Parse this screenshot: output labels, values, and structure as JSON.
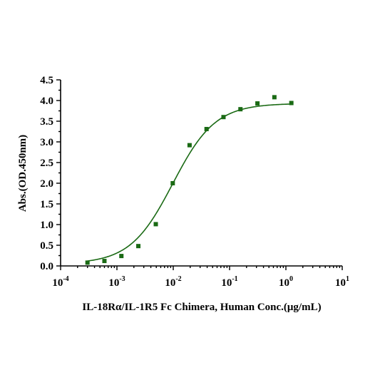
{
  "chart_data": {
    "type": "scatter",
    "title": "",
    "xlabel": "IL-18Rα/IL-1R5 Fc Chimera, Human Conc.(μg/mL)",
    "ylabel": "Abs.(OD.450nm)",
    "xscale": "log",
    "xlim": [
      0.0001,
      10
    ],
    "ylim": [
      0,
      4.5
    ],
    "xticks": [
      {
        "value": 0.0001,
        "base": "10",
        "exp": "-4"
      },
      {
        "value": 0.001,
        "base": "10",
        "exp": "-3"
      },
      {
        "value": 0.01,
        "base": "10",
        "exp": "-2"
      },
      {
        "value": 0.1,
        "base": "10",
        "exp": "-1"
      },
      {
        "value": 1,
        "base": "10",
        "exp": "0"
      },
      {
        "value": 10,
        "base": "10",
        "exp": "1"
      }
    ],
    "yticks": [
      "0.0",
      "0.5",
      "1.0",
      "1.5",
      "2.0",
      "2.5",
      "3.0",
      "3.5",
      "4.0",
      "4.5"
    ],
    "grid": false,
    "legend": "none",
    "color": "#1a6a14",
    "series": [
      {
        "x": [
          0.0003,
          0.0006,
          0.0012,
          0.0024,
          0.0049,
          0.0098,
          0.0195,
          0.039,
          0.078,
          0.156,
          0.3125,
          0.625,
          1.25
        ],
        "y": [
          0.08,
          0.12,
          0.24,
          0.48,
          1.01,
          2.0,
          2.92,
          3.31,
          3.6,
          3.79,
          3.93,
          4.08,
          3.94
        ]
      }
    ],
    "fit_curve": {
      "model": "4PL",
      "bottom": 0.05,
      "top": 3.93,
      "ec50": 0.0098,
      "hill": 1.15
    }
  }
}
